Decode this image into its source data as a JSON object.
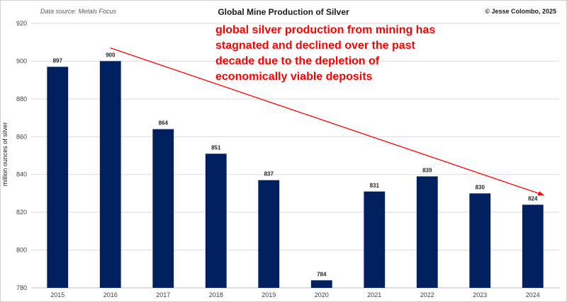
{
  "chart_data": {
    "type": "bar",
    "title": "Global Mine Production of Silver",
    "source_note": "Data source: Metals Focus",
    "credit": "© Jesse Colombo, 2025",
    "annotation": "global silver production from mining has stagnated and declined over the past decade due to the depletion of economically viable deposits",
    "ylabel": "million ounces of silver",
    "xlabel": "",
    "categories": [
      "2015",
      "2016",
      "2017",
      "2018",
      "2019",
      "2020",
      "2021",
      "2022",
      "2023",
      "2024"
    ],
    "values": [
      897,
      900,
      864,
      851,
      837,
      784,
      831,
      839,
      830,
      824
    ],
    "data_labels": [
      "897",
      "900",
      "864",
      "851",
      "837",
      "784",
      "831",
      "839",
      "830",
      "824"
    ],
    "ylim": [
      780,
      920
    ],
    "yticks": [
      780,
      800,
      820,
      840,
      860,
      880,
      900,
      920
    ],
    "ytick_labels": [
      "780",
      "800",
      "820",
      "840",
      "860",
      "880",
      "900",
      "920"
    ],
    "grid": true,
    "legend": "none",
    "trend_arrow": {
      "from": {
        "x": "2016",
        "y": 907
      },
      "to": {
        "x": "2024",
        "y": 829
      },
      "color": "#ff0000"
    },
    "colors": {
      "bar": "#002060",
      "grid": "#d9d9d9",
      "annotation": "#ff0000"
    }
  }
}
